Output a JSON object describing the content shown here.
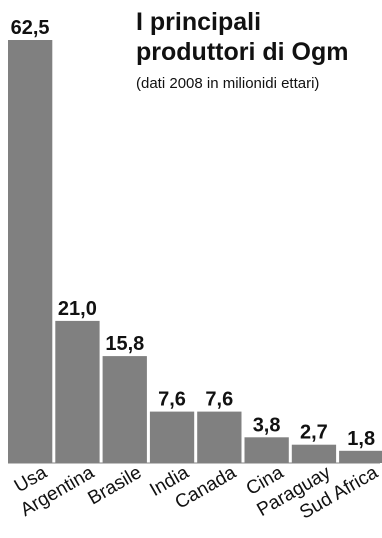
{
  "chart_data": {
    "type": "bar",
    "title": [
      "I principali",
      "produttori di Ogm"
    ],
    "subtitle": "(dati 2008 in milionidi ettari)",
    "categories": [
      "Usa",
      "Argentina",
      "Brasile",
      "India",
      "Canada",
      "Cina",
      "Paraguay",
      "Sud Africa"
    ],
    "values": [
      62.5,
      21.0,
      15.8,
      7.6,
      7.6,
      3.8,
      2.7,
      1.8
    ],
    "value_labels": [
      "62,5",
      "21,0",
      "15,8",
      "7,6",
      "7,6",
      "3,8",
      "2,7",
      "1,8"
    ],
    "xlabel": "",
    "ylabel": "",
    "ylim": [
      0,
      62.5
    ],
    "grid": false,
    "legend": "none",
    "bar_color": "#808080"
  }
}
